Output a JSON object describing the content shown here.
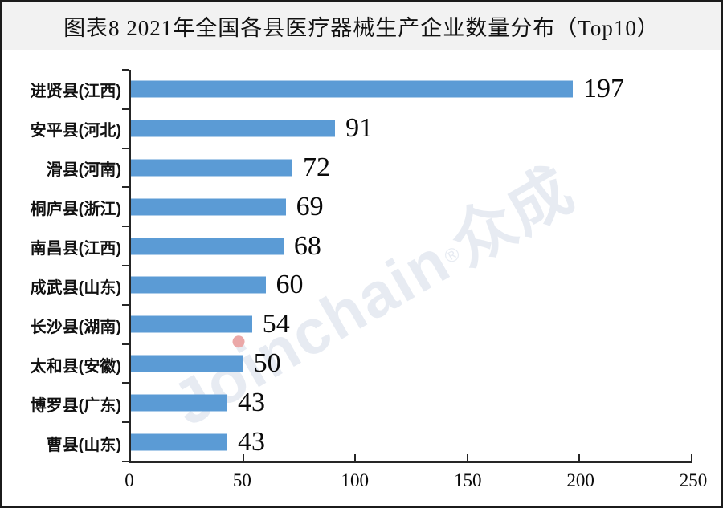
{
  "title": "图表8 2021年全国各县医疗器械生产企业数量分布（Top10）",
  "watermark": {
    "brand_part1": "Jo",
    "brand_part2": "i",
    "brand_part3": "nchain",
    "reg_mark": "®",
    "brand_cjk": "众成"
  },
  "colors": {
    "bar": "#5B9BD5",
    "axis": "#262626",
    "title_band_bg": "#f2f2f2",
    "watermark": "#e3e8f0",
    "watermark_dot": "#e89a9a"
  },
  "chart_data": {
    "type": "bar",
    "orientation": "horizontal",
    "title": "图表8 2021年全国各县医疗器械生产企业数量分布（Top10）",
    "categories": [
      "进贤县(江西)",
      "安平县(河北)",
      "滑县(河南)",
      "桐庐县(浙江)",
      "南昌县(江西)",
      "成武县(山东)",
      "长沙县(湖南)",
      "太和县(安徽)",
      "博罗县(广东)",
      "曹县(山东)"
    ],
    "values": [
      197,
      91,
      72,
      69,
      68,
      60,
      54,
      50,
      43,
      43
    ],
    "xlabel": "",
    "ylabel": "",
    "xlim": [
      0,
      250
    ],
    "x_ticks": [
      0,
      50,
      100,
      150,
      200,
      250
    ],
    "grid": false,
    "legend": false,
    "bar_color": "#5B9BD5",
    "value_labels_shown": true
  }
}
